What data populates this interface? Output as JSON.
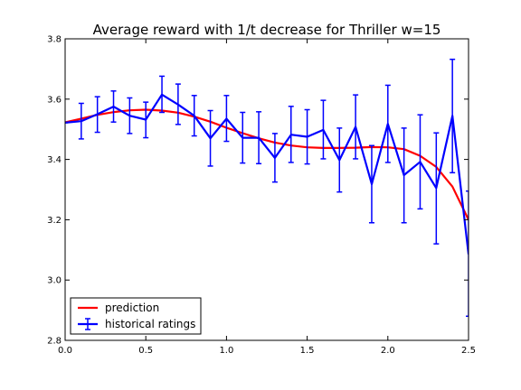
{
  "chart_data": {
    "type": "line",
    "title": "Average reward with 1/t decrease for Thriller w=15",
    "xlabel": "",
    "ylabel": "",
    "xlim": [
      0.0,
      2.5
    ],
    "ylim": [
      2.8,
      3.8
    ],
    "x_ticks": [
      "0.0",
      "0.5",
      "1.0",
      "1.5",
      "2.0",
      "2.5"
    ],
    "y_ticks": [
      "2.8",
      "3.0",
      "3.2",
      "3.4",
      "3.6",
      "3.8"
    ],
    "grid": false,
    "legend_position": "lower-left",
    "series": [
      {
        "name": "prediction",
        "color": "#ff0000",
        "x": [
          0.0,
          0.1,
          0.2,
          0.3,
          0.4,
          0.5,
          0.6,
          0.7,
          0.8,
          0.9,
          1.0,
          1.1,
          1.2,
          1.3,
          1.4,
          1.5,
          1.6,
          1.7,
          1.8,
          1.9,
          2.0,
          2.1,
          2.2,
          2.3,
          2.4,
          2.5
        ],
        "values": [
          3.523,
          3.535,
          3.548,
          3.557,
          3.563,
          3.565,
          3.562,
          3.555,
          3.542,
          3.525,
          3.505,
          3.487,
          3.47,
          3.456,
          3.446,
          3.44,
          3.438,
          3.438,
          3.439,
          3.441,
          3.44,
          3.434,
          3.412,
          3.375,
          3.31,
          3.2
        ]
      },
      {
        "name": "historical ratings",
        "color": "#0000ff",
        "x": [
          0.0,
          0.1,
          0.2,
          0.3,
          0.4,
          0.5,
          0.6,
          0.7,
          0.8,
          0.9,
          1.0,
          1.1,
          1.2,
          1.3,
          1.4,
          1.5,
          1.6,
          1.7,
          1.8,
          1.9,
          2.0,
          2.1,
          2.2,
          2.3,
          2.4,
          2.5
        ],
        "values": [
          3.522,
          3.527,
          3.55,
          3.575,
          3.545,
          3.532,
          3.615,
          3.582,
          3.545,
          3.47,
          3.535,
          3.472,
          3.472,
          3.405,
          3.482,
          3.475,
          3.498,
          3.398,
          3.508,
          3.318,
          3.518,
          3.348,
          3.392,
          3.305,
          3.545,
          3.085
        ],
        "err_low": [
          3.522,
          3.468,
          3.49,
          3.524,
          3.486,
          3.472,
          3.556,
          3.516,
          3.478,
          3.378,
          3.46,
          3.388,
          3.386,
          3.325,
          3.39,
          3.385,
          3.402,
          3.292,
          3.402,
          3.19,
          3.39,
          3.19,
          3.236,
          3.12,
          3.356,
          2.88
        ],
        "err_high": [
          3.522,
          3.586,
          3.608,
          3.627,
          3.604,
          3.59,
          3.676,
          3.65,
          3.612,
          3.562,
          3.612,
          3.556,
          3.558,
          3.486,
          3.576,
          3.565,
          3.596,
          3.504,
          3.614,
          3.446,
          3.646,
          3.504,
          3.548,
          3.488,
          3.732,
          3.295
        ]
      }
    ]
  }
}
